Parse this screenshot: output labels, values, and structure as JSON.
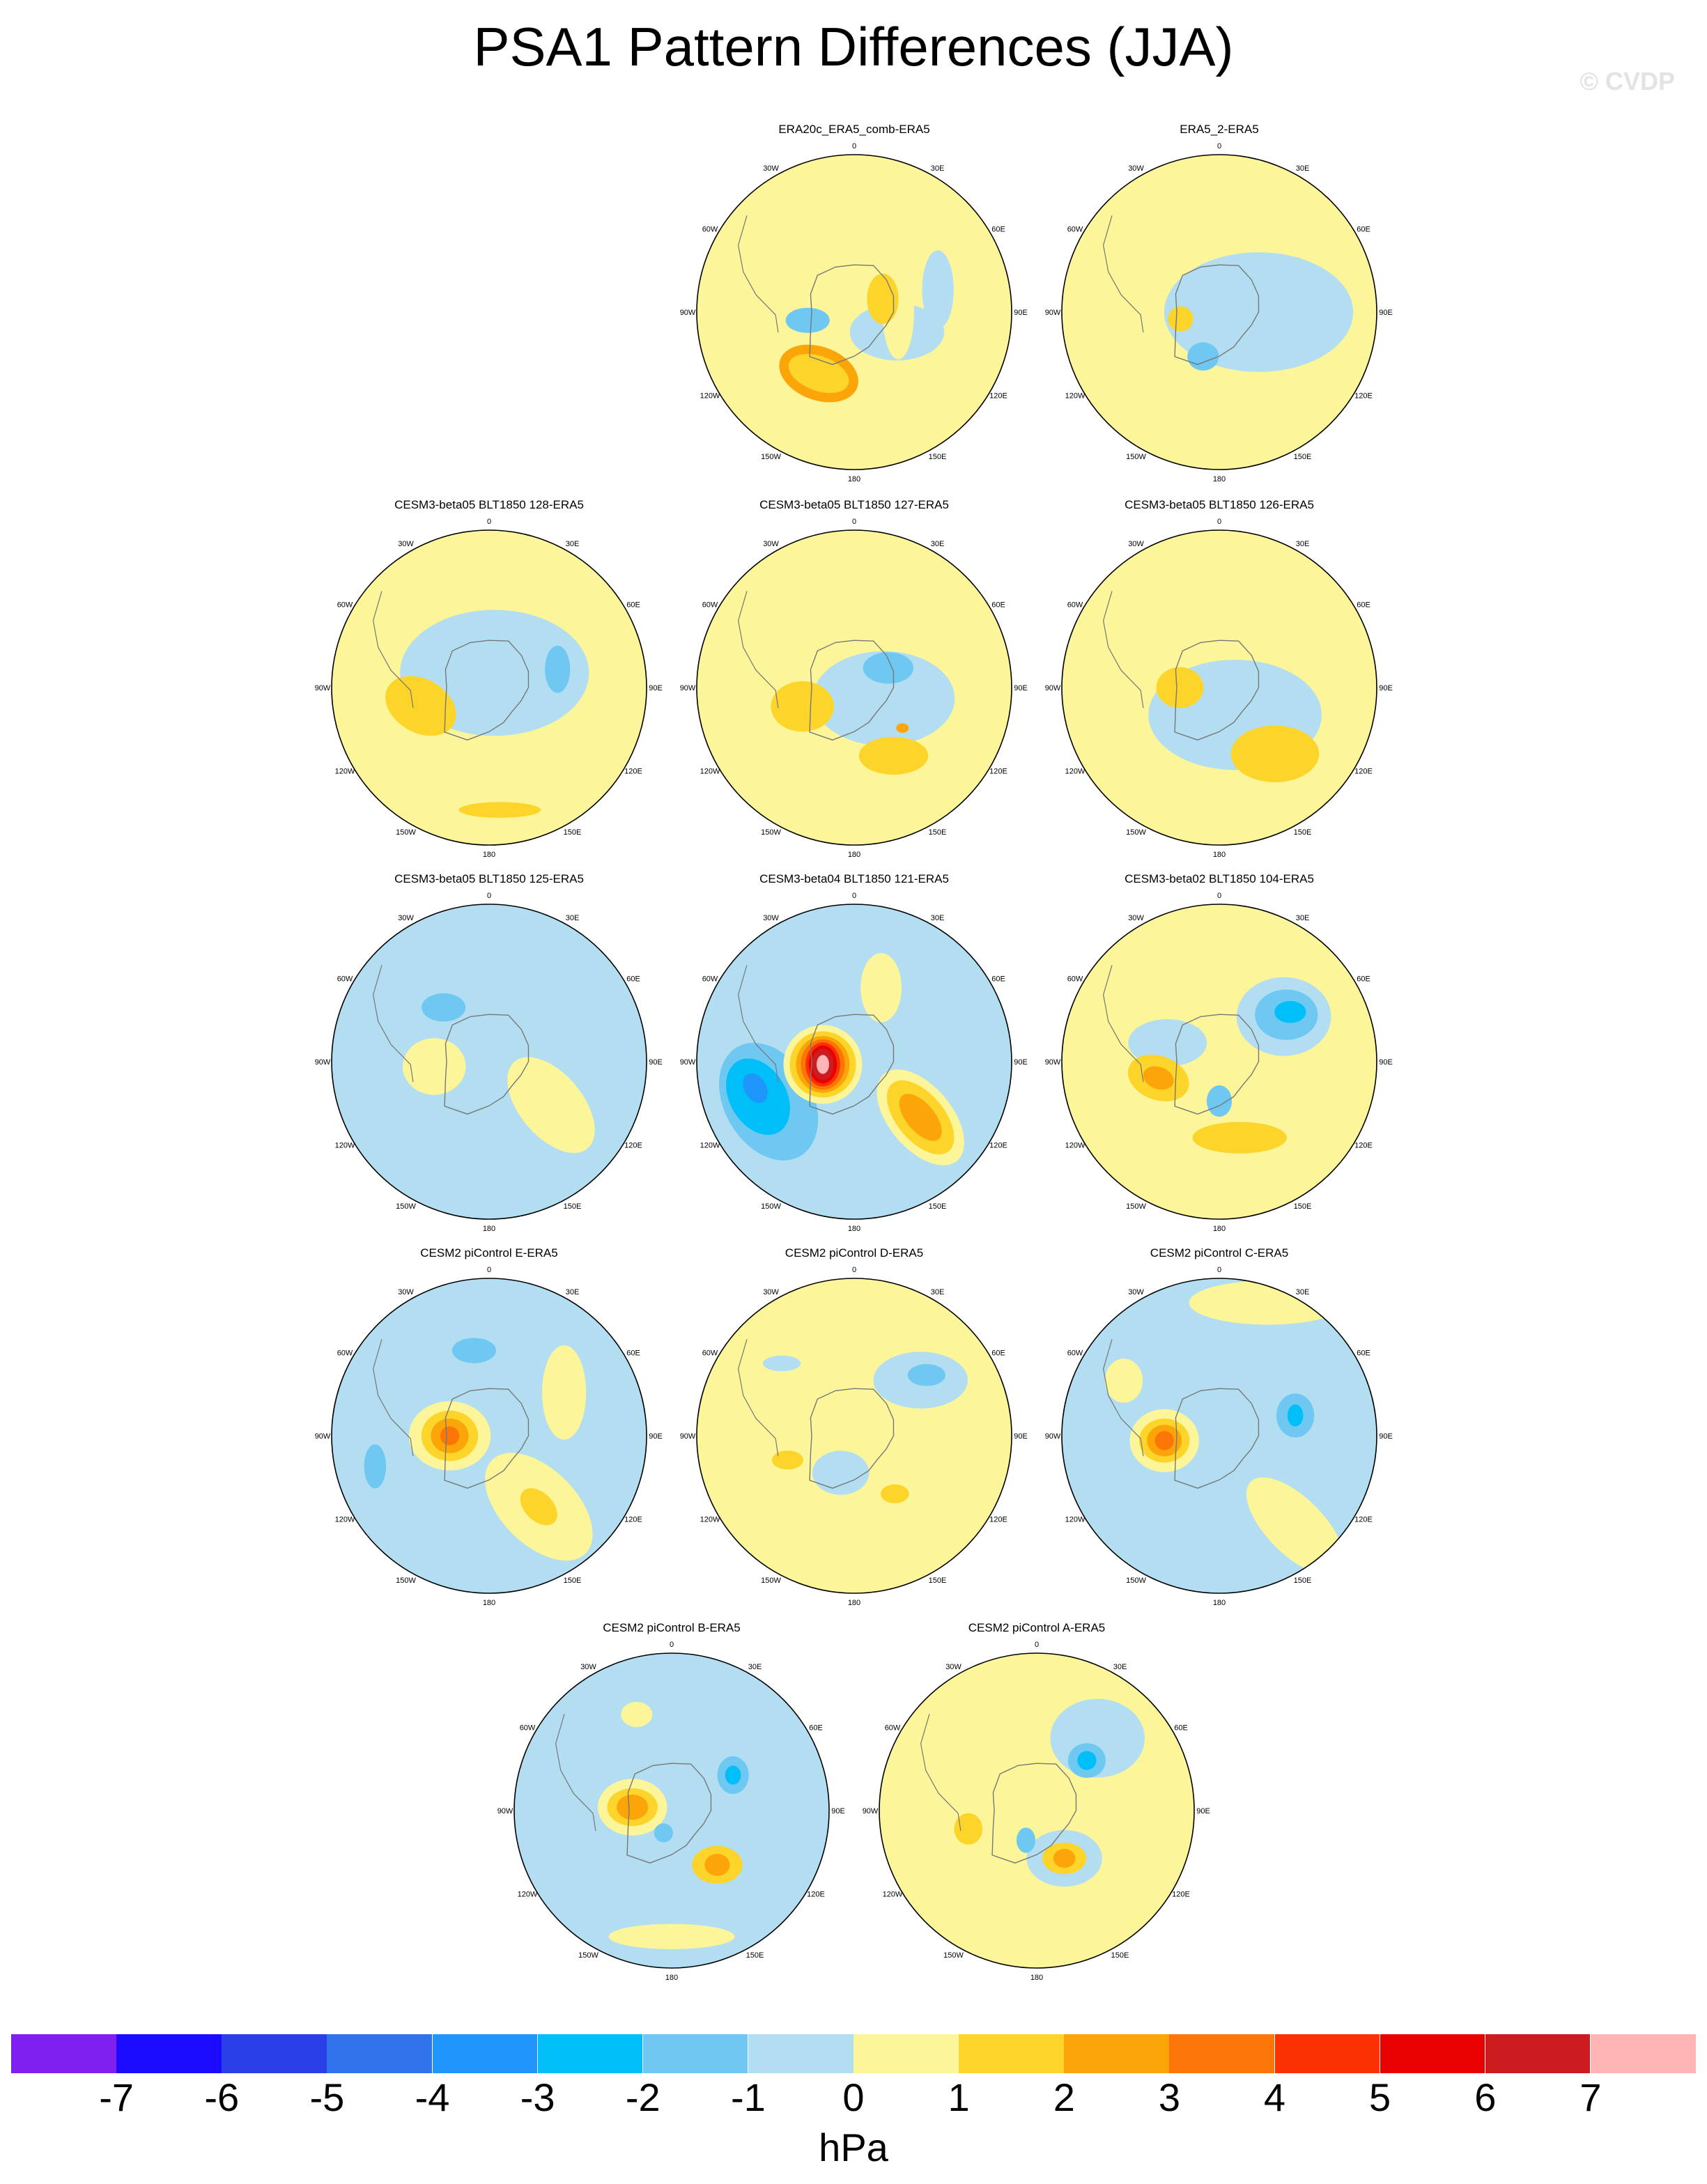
{
  "title": "PSA1 Pattern Differences (JJA)",
  "copyright": "© CVDP",
  "lon_labels": [
    "0",
    "30E",
    "60E",
    "90E",
    "120E",
    "150E",
    "180",
    "150W",
    "120W",
    "90W",
    "60W",
    "30W"
  ],
  "colors": {
    "-7.5": "#7f20f0",
    "-6.5": "#1c0cff",
    "-5.5": "#2b3fe6",
    "-4.5": "#3173ea",
    "-3.5": "#1e96fb",
    "-2.5": "#00bef7",
    "-1.5": "#6fc8f2",
    "-0.5": "#b3def2",
    "0.5": "#fcf599",
    "1.5": "#fdd42a",
    "2.5": "#fba508",
    "3.5": "#fb7607",
    "4.5": "#fc3101",
    "5.5": "#e90000",
    "6.5": "#cd1c1f",
    "7.5": "#ffb5b5"
  },
  "chart_data": {
    "type": "heatmap",
    "projection": "south-polar-stereographic",
    "units": "hPa",
    "colorbar": {
      "levels": [
        -7,
        -6,
        -5,
        -4,
        -3,
        -2,
        -1,
        0,
        1,
        2,
        3,
        4,
        5,
        6,
        7
      ],
      "tick_labels": [
        "-7",
        "-6",
        "-5",
        "-4",
        "-3",
        "-2",
        "-1",
        "0",
        "1",
        "2",
        "3",
        "4",
        "5",
        "6",
        "7"
      ],
      "colors": [
        "#7f20f0",
        "#1c0cff",
        "#2b3fe6",
        "#3173ea",
        "#1e96fb",
        "#00bef7",
        "#6fc8f2",
        "#b3def2",
        "#fcf599",
        "#fdd42a",
        "#fba508",
        "#fb7607",
        "#fc3101",
        "#e90000",
        "#cd1c1f",
        "#ffb5b5"
      ],
      "units_label": "hPa"
    },
    "panels": [
      {
        "title": "ERA20c_ERA5_comb-ERA5",
        "background": 0.5,
        "anomalies": [
          {
            "lon": 115,
            "r": 0.3,
            "value": -0.5,
            "ax": 0.3,
            "ay": 0.18,
            "rot": 0
          },
          {
            "lon": 75,
            "r": 0.55,
            "value": -0.5,
            "ax": 0.1,
            "ay": 0.25,
            "rot": 0
          },
          {
            "lon": 90,
            "r": 0.28,
            "value": 0.5,
            "ax": 0.1,
            "ay": 0.3,
            "rot": 0
          },
          {
            "lon": 260,
            "r": 0.3,
            "value": -1.5,
            "ax": 0.14,
            "ay": 0.08,
            "rot": 0
          },
          {
            "lon": 210,
            "r": 0.45,
            "value": 2.5,
            "ax": 0.26,
            "ay": 0.17,
            "rot": 20
          },
          {
            "lon": 210,
            "r": 0.45,
            "value": 1.5,
            "ax": 0.2,
            "ay": 0.11,
            "rot": 20
          },
          {
            "lon": 65,
            "r": 0.2,
            "value": 1.5,
            "ax": 0.1,
            "ay": 0.16,
            "rot": 0
          }
        ]
      },
      {
        "title": "ERA5_2-ERA5",
        "background": 0.5,
        "anomalies": [
          {
            "lon": 90,
            "r": 0.25,
            "value": -0.5,
            "ax": 0.6,
            "ay": 0.38,
            "rot": 0
          },
          {
            "lon": 260,
            "r": 0.25,
            "value": 1.5,
            "ax": 0.08,
            "ay": 0.08,
            "rot": 0
          },
          {
            "lon": 200,
            "r": 0.3,
            "value": -1.5,
            "ax": 0.1,
            "ay": 0.09,
            "rot": 0
          }
        ]
      },
      {
        "title": "CESM3-beta05 BLT1850 128-ERA5",
        "background": 0.5,
        "anomalies": [
          {
            "lon": 20,
            "r": 0.1,
            "value": -0.5,
            "ax": 0.6,
            "ay": 0.4,
            "rot": 0
          },
          {
            "lon": 255,
            "r": 0.45,
            "value": 2.5,
            "ax": 0.18,
            "ay": 0.11,
            "rot": 30
          },
          {
            "lon": 255,
            "r": 0.45,
            "value": 1.5,
            "ax": 0.24,
            "ay": 0.17,
            "rot": 30
          },
          {
            "lon": 75,
            "r": 0.45,
            "value": -1.5,
            "ax": 0.08,
            "ay": 0.15,
            "rot": 0
          },
          {
            "lon": 175,
            "r": 0.78,
            "value": 1.5,
            "ax": 0.26,
            "ay": 0.05,
            "rot": 0
          }
        ]
      },
      {
        "title": "CESM3-beta05 BLT1850 127-ERA5",
        "background": 0.5,
        "anomalies": [
          {
            "lon": 110,
            "r": 0.2,
            "value": -0.5,
            "ax": 0.45,
            "ay": 0.3,
            "rot": 0
          },
          {
            "lon": 60,
            "r": 0.25,
            "value": -1.5,
            "ax": 0.16,
            "ay": 0.1,
            "rot": 0
          },
          {
            "lon": 250,
            "r": 0.35,
            "value": 2.5,
            "ax": 0.13,
            "ay": 0.1,
            "rot": 0
          },
          {
            "lon": 250,
            "r": 0.35,
            "value": 1.5,
            "ax": 0.2,
            "ay": 0.16,
            "rot": 0
          },
          {
            "lon": 150,
            "r": 0.5,
            "value": 1.5,
            "ax": 0.22,
            "ay": 0.12,
            "rot": 0
          },
          {
            "lon": 130,
            "r": 0.4,
            "value": 2.5,
            "ax": 0.04,
            "ay": 0.03,
            "rot": 0
          }
        ]
      },
      {
        "title": "CESM3-beta05 BLT1850 126-ERA5",
        "background": 0.5,
        "anomalies": [
          {
            "lon": 150,
            "r": 0.2,
            "value": -0.5,
            "ax": 0.55,
            "ay": 0.35,
            "rot": 0
          },
          {
            "lon": 270,
            "r": 0.25,
            "value": 2.5,
            "ax": 0.1,
            "ay": 0.08,
            "rot": 0
          },
          {
            "lon": 270,
            "r": 0.25,
            "value": 1.5,
            "ax": 0.15,
            "ay": 0.13,
            "rot": 0
          },
          {
            "lon": 140,
            "r": 0.55,
            "value": 2.5,
            "ax": 0.2,
            "ay": 0.13,
            "rot": 0
          },
          {
            "lon": 140,
            "r": 0.55,
            "value": 1.5,
            "ax": 0.28,
            "ay": 0.18,
            "rot": 0
          }
        ]
      },
      {
        "title": "CESM3-beta05 BLT1850 125-ERA5",
        "background": -0.5,
        "anomalies": [
          {
            "lon": 320,
            "r": 0.45,
            "value": -1.5,
            "ax": 0.14,
            "ay": 0.09,
            "rot": 0
          },
          {
            "lon": 265,
            "r": 0.35,
            "value": 3.5,
            "ax": 0.08,
            "ay": 0.07,
            "rot": 0
          },
          {
            "lon": 265,
            "r": 0.35,
            "value": 2.5,
            "ax": 0.12,
            "ay": 0.1,
            "rot": 0
          },
          {
            "lon": 265,
            "r": 0.35,
            "value": 1.5,
            "ax": 0.16,
            "ay": 0.14,
            "rot": 0
          },
          {
            "lon": 265,
            "r": 0.35,
            "value": 0.5,
            "ax": 0.2,
            "ay": 0.18,
            "rot": 0
          },
          {
            "lon": 125,
            "r": 0.48,
            "value": 3.5,
            "ax": 0.12,
            "ay": 0.06,
            "rot": 50
          },
          {
            "lon": 125,
            "r": 0.48,
            "value": 2.5,
            "ax": 0.2,
            "ay": 0.1,
            "rot": 50
          },
          {
            "lon": 125,
            "r": 0.48,
            "value": 1.5,
            "ax": 0.28,
            "ay": 0.15,
            "rot": 50
          },
          {
            "lon": 125,
            "r": 0.48,
            "value": 0.5,
            "ax": 0.36,
            "ay": 0.2,
            "rot": 50
          }
        ]
      },
      {
        "title": "CESM3-beta04 BLT1850 121-ERA5",
        "background": -0.5,
        "anomalies": [
          {
            "lon": 245,
            "r": 0.6,
            "value": -1.5,
            "ax": 0.4,
            "ay": 0.28,
            "rot": 60
          },
          {
            "lon": 250,
            "r": 0.65,
            "value": -2.5,
            "ax": 0.26,
            "ay": 0.18,
            "rot": 60
          },
          {
            "lon": 255,
            "r": 0.65,
            "value": -3.5,
            "ax": 0.1,
            "ay": 0.07,
            "rot": 60
          },
          {
            "lon": 20,
            "r": 0.5,
            "value": 1.5,
            "ax": 0.16,
            "ay": 0.08,
            "rot": 90
          },
          {
            "lon": 20,
            "r": 0.5,
            "value": 0.5,
            "ax": 0.22,
            "ay": 0.13,
            "rot": 90
          },
          {
            "lon": 265,
            "r": 0.2,
            "value": 0.5,
            "ax": 0.25,
            "ay": 0.25,
            "rot": 0
          },
          {
            "lon": 265,
            "r": 0.2,
            "value": 1.5,
            "ax": 0.21,
            "ay": 0.21,
            "rot": 0
          },
          {
            "lon": 265,
            "r": 0.2,
            "value": 2.5,
            "ax": 0.17,
            "ay": 0.18,
            "rot": 0
          },
          {
            "lon": 265,
            "r": 0.2,
            "value": 3.5,
            "ax": 0.14,
            "ay": 0.16,
            "rot": 0
          },
          {
            "lon": 265,
            "r": 0.2,
            "value": 4.5,
            "ax": 0.11,
            "ay": 0.14,
            "rot": 0
          },
          {
            "lon": 265,
            "r": 0.2,
            "value": 5.5,
            "ax": 0.09,
            "ay": 0.12,
            "rot": 0
          },
          {
            "lon": 265,
            "r": 0.2,
            "value": 6.5,
            "ax": 0.07,
            "ay": 0.1,
            "rot": 0
          },
          {
            "lon": 265,
            "r": 0.2,
            "value": 7.5,
            "ax": 0.04,
            "ay": 0.06,
            "rot": 0
          },
          {
            "lon": 130,
            "r": 0.55,
            "value": 0.5,
            "ax": 0.36,
            "ay": 0.2,
            "rot": 50
          },
          {
            "lon": 130,
            "r": 0.55,
            "value": 1.5,
            "ax": 0.28,
            "ay": 0.15,
            "rot": 50
          },
          {
            "lon": 130,
            "r": 0.55,
            "value": 2.5,
            "ax": 0.18,
            "ay": 0.09,
            "rot": 50
          }
        ]
      },
      {
        "title": "CESM3-beta02 BLT1850 104-ERA5",
        "background": 0.5,
        "anomalies": [
          {
            "lon": 55,
            "r": 0.5,
            "value": -0.5,
            "ax": 0.3,
            "ay": 0.25,
            "rot": 0
          },
          {
            "lon": 55,
            "r": 0.52,
            "value": -1.5,
            "ax": 0.2,
            "ay": 0.16,
            "rot": 0
          },
          {
            "lon": 55,
            "r": 0.55,
            "value": -2.5,
            "ax": 0.1,
            "ay": 0.07,
            "rot": 0
          },
          {
            "lon": 290,
            "r": 0.35,
            "value": -0.5,
            "ax": 0.25,
            "ay": 0.15,
            "rot": 0
          },
          {
            "lon": 255,
            "r": 0.4,
            "value": 1.5,
            "ax": 0.2,
            "ay": 0.14,
            "rot": 20
          },
          {
            "lon": 255,
            "r": 0.4,
            "value": 2.5,
            "ax": 0.1,
            "ay": 0.07,
            "rot": 20
          },
          {
            "lon": 165,
            "r": 0.5,
            "value": 1.5,
            "ax": 0.3,
            "ay": 0.1,
            "rot": 0
          },
          {
            "lon": 180,
            "r": 0.25,
            "value": -1.5,
            "ax": 0.08,
            "ay": 0.1,
            "rot": 0
          }
        ]
      },
      {
        "title": "CESM2 piControl E-ERA5",
        "background": -0.5,
        "anomalies": [
          {
            "lon": 270,
            "r": 0.25,
            "value": 0.5,
            "ax": 0.26,
            "ay": 0.22,
            "rot": 0
          },
          {
            "lon": 270,
            "r": 0.25,
            "value": 1.5,
            "ax": 0.18,
            "ay": 0.16,
            "rot": 0
          },
          {
            "lon": 270,
            "r": 0.25,
            "value": 2.5,
            "ax": 0.12,
            "ay": 0.11,
            "rot": 0
          },
          {
            "lon": 270,
            "r": 0.25,
            "value": 3.5,
            "ax": 0.06,
            "ay": 0.06,
            "rot": 0
          },
          {
            "lon": 350,
            "r": 0.55,
            "value": -1.5,
            "ax": 0.14,
            "ay": 0.08,
            "rot": 0
          },
          {
            "lon": 255,
            "r": 0.75,
            "value": -1.5,
            "ax": 0.07,
            "ay": 0.14,
            "rot": 0
          },
          {
            "lon": 145,
            "r": 0.55,
            "value": 0.5,
            "ax": 0.42,
            "ay": 0.24,
            "rot": 45
          },
          {
            "lon": 145,
            "r": 0.55,
            "value": 1.5,
            "ax": 0.14,
            "ay": 0.09,
            "rot": 45
          },
          {
            "lon": 60,
            "r": 0.55,
            "value": 0.5,
            "ax": 0.14,
            "ay": 0.3,
            "rot": 0
          }
        ]
      },
      {
        "title": "CESM2 piControl D-ERA5",
        "background": 0.5,
        "anomalies": [
          {
            "lon": 50,
            "r": 0.55,
            "value": -0.5,
            "ax": 0.3,
            "ay": 0.18,
            "rot": 0
          },
          {
            "lon": 50,
            "r": 0.6,
            "value": -1.5,
            "ax": 0.12,
            "ay": 0.07,
            "rot": 0
          },
          {
            "lon": 200,
            "r": 0.25,
            "value": -0.5,
            "ax": 0.18,
            "ay": 0.14,
            "rot": 0
          },
          {
            "lon": 250,
            "r": 0.45,
            "value": 1.5,
            "ax": 0.1,
            "ay": 0.06,
            "rot": 0
          },
          {
            "lon": 145,
            "r": 0.45,
            "value": 1.5,
            "ax": 0.09,
            "ay": 0.06,
            "rot": 0
          },
          {
            "lon": 315,
            "r": 0.65,
            "value": -0.5,
            "ax": 0.12,
            "ay": 0.05,
            "rot": 0
          }
        ]
      },
      {
        "title": "CESM2 piControl C-ERA5",
        "background": -0.5,
        "anomalies": [
          {
            "lon": 265,
            "r": 0.35,
            "value": 0.5,
            "ax": 0.22,
            "ay": 0.2,
            "rot": 0
          },
          {
            "lon": 265,
            "r": 0.35,
            "value": 1.5,
            "ax": 0.16,
            "ay": 0.14,
            "rot": 0
          },
          {
            "lon": 265,
            "r": 0.35,
            "value": 2.5,
            "ax": 0.11,
            "ay": 0.1,
            "rot": 0
          },
          {
            "lon": 265,
            "r": 0.35,
            "value": 3.5,
            "ax": 0.06,
            "ay": 0.06,
            "rot": 0
          },
          {
            "lon": 75,
            "r": 0.5,
            "value": -1.5,
            "ax": 0.12,
            "ay": 0.14,
            "rot": 0
          },
          {
            "lon": 75,
            "r": 0.5,
            "value": -2.5,
            "ax": 0.05,
            "ay": 0.07,
            "rot": 0
          },
          {
            "lon": 20,
            "r": 0.9,
            "value": 0.5,
            "ax": 0.5,
            "ay": 0.14,
            "rot": 0
          },
          {
            "lon": 140,
            "r": 0.75,
            "value": 0.5,
            "ax": 0.4,
            "ay": 0.18,
            "rot": 45
          },
          {
            "lon": 300,
            "r": 0.7,
            "value": 0.5,
            "ax": 0.12,
            "ay": 0.14,
            "rot": 0
          }
        ]
      },
      {
        "title": "CESM2 piControl B-ERA5",
        "background": -0.5,
        "anomalies": [
          {
            "lon": 275,
            "r": 0.25,
            "value": 0.5,
            "ax": 0.22,
            "ay": 0.18,
            "rot": 0
          },
          {
            "lon": 275,
            "r": 0.25,
            "value": 1.5,
            "ax": 0.16,
            "ay": 0.12,
            "rot": 0
          },
          {
            "lon": 275,
            "r": 0.25,
            "value": 2.5,
            "ax": 0.1,
            "ay": 0.08,
            "rot": 0
          },
          {
            "lon": 60,
            "r": 0.45,
            "value": -1.5,
            "ax": 0.1,
            "ay": 0.12,
            "rot": 0
          },
          {
            "lon": 60,
            "r": 0.45,
            "value": -2.5,
            "ax": 0.05,
            "ay": 0.06,
            "rot": 0
          },
          {
            "lon": 140,
            "r": 0.45,
            "value": 1.5,
            "ax": 0.16,
            "ay": 0.12,
            "rot": 0
          },
          {
            "lon": 140,
            "r": 0.45,
            "value": 2.5,
            "ax": 0.08,
            "ay": 0.07,
            "rot": 0
          },
          {
            "lon": 200,
            "r": 0.15,
            "value": -1.5,
            "ax": 0.06,
            "ay": 0.06,
            "rot": 0
          },
          {
            "lon": 180,
            "r": 0.8,
            "value": 0.5,
            "ax": 0.4,
            "ay": 0.08,
            "rot": 0
          },
          {
            "lon": 340,
            "r": 0.65,
            "value": 0.5,
            "ax": 0.1,
            "ay": 0.08,
            "rot": 0
          }
        ]
      },
      {
        "title": "CESM2 piControl A-ERA5",
        "background": 0.5,
        "anomalies": [
          {
            "lon": 40,
            "r": 0.6,
            "value": -0.5,
            "ax": 0.3,
            "ay": 0.25,
            "rot": 0
          },
          {
            "lon": 45,
            "r": 0.45,
            "value": -1.5,
            "ax": 0.12,
            "ay": 0.11,
            "rot": 0
          },
          {
            "lon": 45,
            "r": 0.45,
            "value": -2.5,
            "ax": 0.06,
            "ay": 0.06,
            "rot": 0
          },
          {
            "lon": 255,
            "r": 0.45,
            "value": 1.5,
            "ax": 0.09,
            "ay": 0.1,
            "rot": 0
          },
          {
            "lon": 150,
            "r": 0.35,
            "value": -0.5,
            "ax": 0.24,
            "ay": 0.18,
            "rot": 0
          },
          {
            "lon": 150,
            "r": 0.35,
            "value": 1.5,
            "ax": 0.14,
            "ay": 0.1,
            "rot": 0
          },
          {
            "lon": 150,
            "r": 0.35,
            "value": 2.5,
            "ax": 0.07,
            "ay": 0.06,
            "rot": 0
          },
          {
            "lon": 200,
            "r": 0.2,
            "value": -1.5,
            "ax": 0.06,
            "ay": 0.08,
            "rot": 0
          }
        ]
      }
    ]
  }
}
